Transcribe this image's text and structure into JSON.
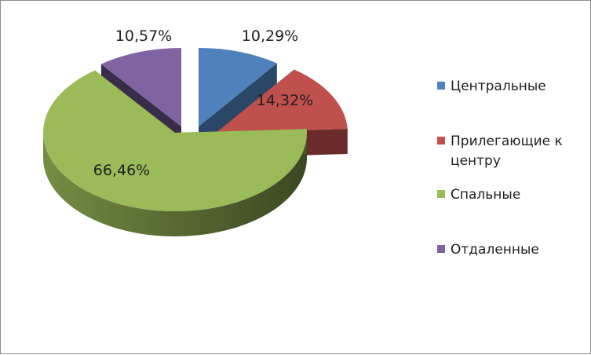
{
  "chart_data": {
    "type": "pie",
    "title": "",
    "categories": [
      "Центральные",
      "Прилегающие к центру",
      "Спальные",
      "Отдаленные"
    ],
    "legend_lines": [
      [
        "Центральные"
      ],
      [
        "Прилегающие к",
        "центру"
      ],
      [
        "Спальные"
      ],
      [
        "Отдаленные"
      ]
    ],
    "values": [
      10.29,
      14.32,
      66.46,
      10.57
    ],
    "data_labels": [
      "10,29%",
      "14,32%",
      "66,46%",
      "10,57%"
    ],
    "colors": [
      "#4F81BD",
      "#C0504D",
      "#9BBB59",
      "#8064A2"
    ],
    "legend_position": "right",
    "style": "3d-exploded"
  }
}
